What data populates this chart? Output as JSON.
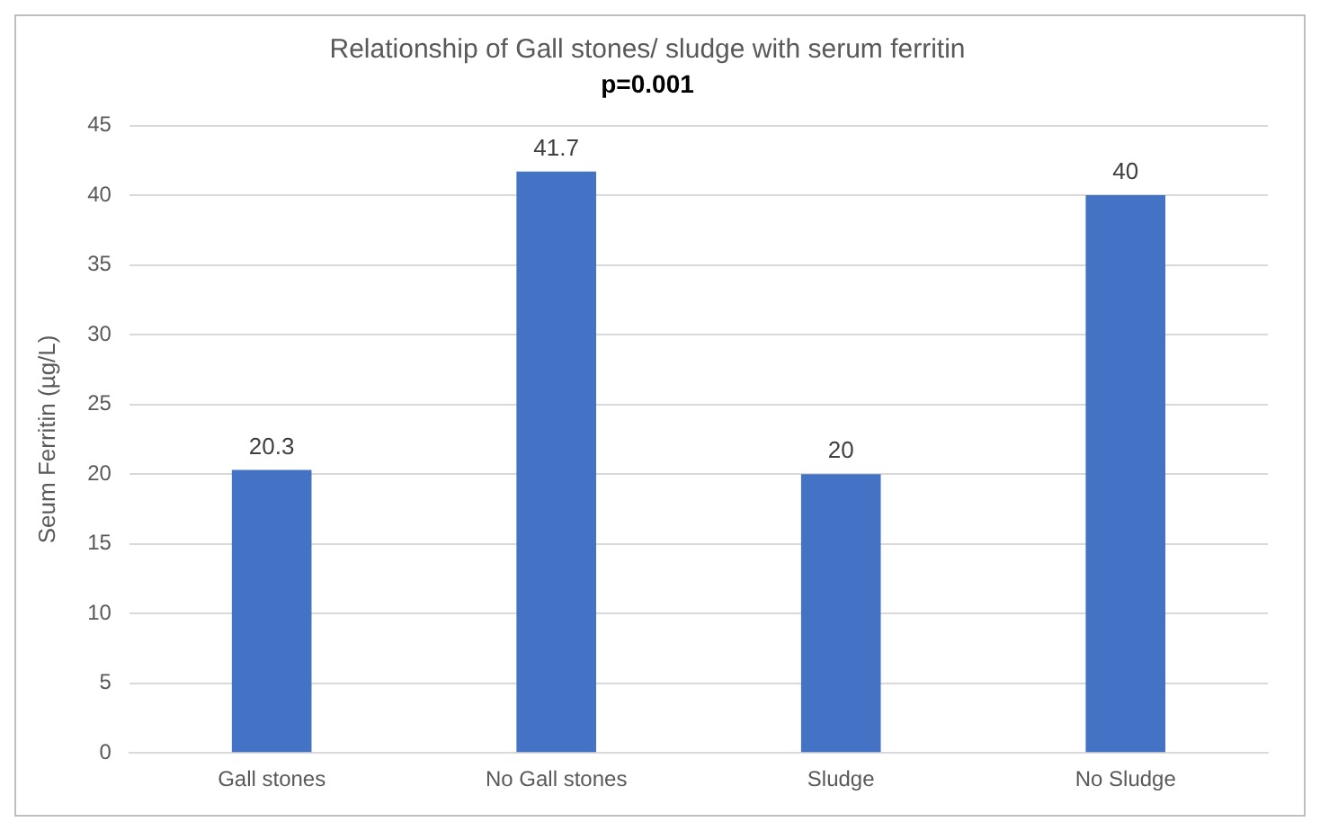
{
  "chart_data": {
    "type": "bar",
    "title": "Relationship of Gall stones/ sludge with serum ferritin",
    "subtitle": "p=0.001",
    "ylabel": "Seum Ferritin (µg/L)",
    "categories": [
      "Gall stones",
      "No Gall stones",
      "Sludge",
      "No Sludge"
    ],
    "values": [
      20.3,
      41.7,
      20,
      40
    ],
    "color": "#4472c4",
    "ylim": [
      0,
      45
    ],
    "yticks": [
      0,
      5,
      10,
      15,
      20,
      25,
      30,
      35,
      40,
      45
    ],
    "grid": "y",
    "data_labels": true
  }
}
